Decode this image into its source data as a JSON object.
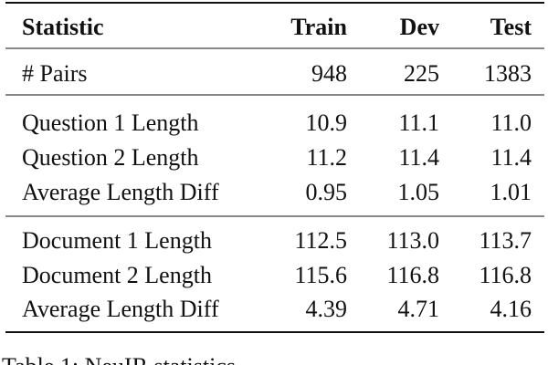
{
  "table": {
    "header": [
      "Statistic",
      "Train",
      "Dev",
      "Test"
    ],
    "groups": [
      [
        [
          "# Pairs",
          "948",
          "225",
          "1383"
        ]
      ],
      [
        [
          "Question 1 Length",
          "10.9",
          "11.1",
          "11.0"
        ],
        [
          "Question 2 Length",
          "11.2",
          "11.4",
          "11.4"
        ],
        [
          "Average Length Diff",
          "0.95",
          "1.05",
          "1.01"
        ]
      ],
      [
        [
          "Document 1 Length",
          "112.5",
          "113.0",
          "113.7"
        ],
        [
          "Document 2 Length",
          "115.6",
          "116.8",
          "116.8"
        ],
        [
          "Average Length Diff",
          "4.39",
          "4.71",
          "4.16"
        ]
      ]
    ]
  },
  "caption": "Table 1: NeuIR statistics"
}
